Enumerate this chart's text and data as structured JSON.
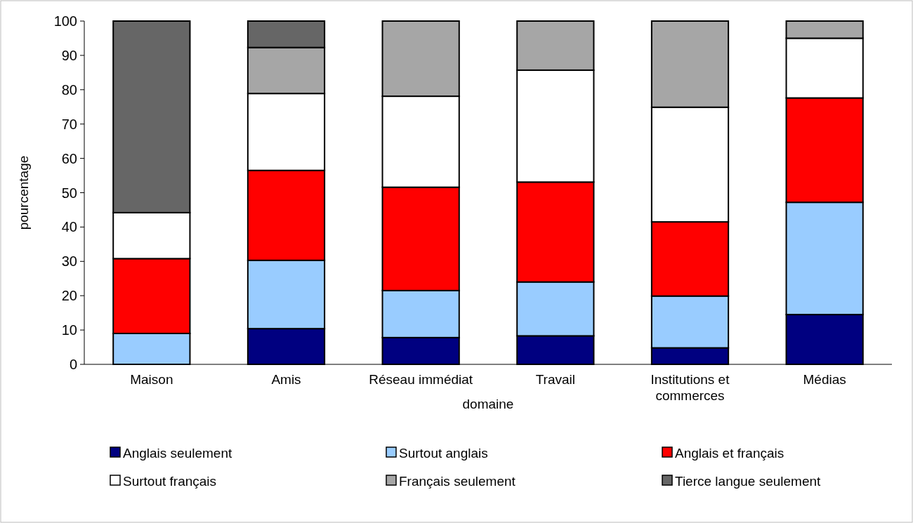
{
  "chart_data": {
    "type": "bar",
    "stacked": true,
    "xlabel": "domaine",
    "ylabel": "pourcentage",
    "categories": [
      "Maison",
      "Amis",
      "Réseau immédiat",
      "Travail",
      "Institutions et commerces",
      "Médias"
    ],
    "series": [
      {
        "name": "Anglais seulement",
        "color": "#000080",
        "values": [
          0,
          10.4,
          7.8,
          8.3,
          4.8,
          14.5
        ]
      },
      {
        "name": "Surtout anglais",
        "color": "#99ccff",
        "values": [
          9.0,
          19.9,
          13.7,
          15.7,
          15.1,
          32.7
        ]
      },
      {
        "name": "Anglais et français",
        "color": "#ff0000",
        "values": [
          21.8,
          26.2,
          30.1,
          29.1,
          21.6,
          30.4
        ]
      },
      {
        "name": "Surtout français",
        "color": "#ffffff",
        "values": [
          13.4,
          22.4,
          26.5,
          32.6,
          33.4,
          17.4
        ]
      },
      {
        "name": "Français seulement",
        "color": "#a6a6a6",
        "values": [
          0,
          13.4,
          21.9,
          14.3,
          25.1,
          5.0
        ]
      },
      {
        "name": "Tierce langue seulement",
        "color": "#666666",
        "values": [
          55.8,
          7.7,
          0,
          0,
          0,
          0
        ]
      }
    ],
    "ylim": [
      0,
      100
    ],
    "yticks": [
      0,
      10,
      20,
      30,
      40,
      50,
      60,
      70,
      80,
      90,
      100
    ],
    "grid": false,
    "legend": "bottom"
  }
}
